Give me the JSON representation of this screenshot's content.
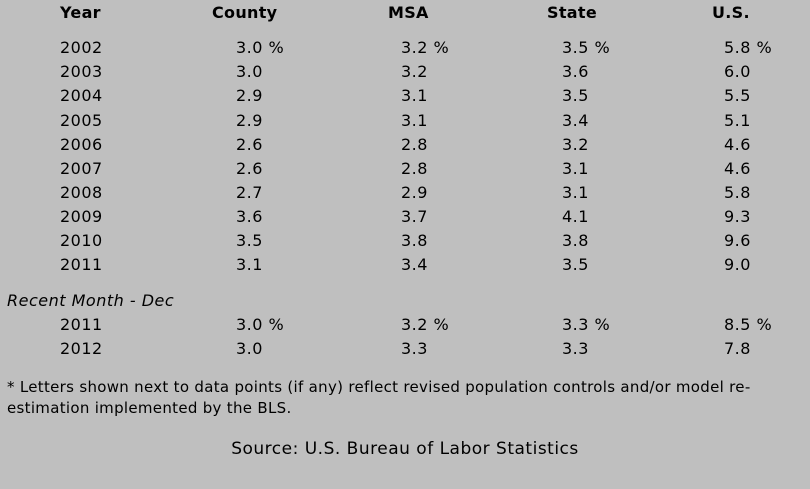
{
  "headers": {
    "year": "Year",
    "county": "County",
    "msa": "MSA",
    "state": "State",
    "us": "U.S."
  },
  "annual_rows": [
    {
      "year": "2002",
      "county": "3.0 %",
      "msa": "3.2 %",
      "state": "3.5 %",
      "us": "5.8 %"
    },
    {
      "year": "2003",
      "county": "3.0",
      "msa": "3.2",
      "state": "3.6",
      "us": "6.0"
    },
    {
      "year": "2004",
      "county": "2.9",
      "msa": "3.1",
      "state": "3.5",
      "us": "5.5"
    },
    {
      "year": "2005",
      "county": "2.9",
      "msa": "3.1",
      "state": "3.4",
      "us": "5.1"
    },
    {
      "year": "2006",
      "county": "2.6",
      "msa": "2.8",
      "state": "3.2",
      "us": "4.6"
    },
    {
      "year": "2007",
      "county": "2.6",
      "msa": "2.8",
      "state": "3.1",
      "us": "4.6"
    },
    {
      "year": "2008",
      "county": "2.7",
      "msa": "2.9",
      "state": "3.1",
      "us": "5.8"
    },
    {
      "year": "2009",
      "county": "3.6",
      "msa": "3.7",
      "state": "4.1",
      "us": "9.3"
    },
    {
      "year": "2010",
      "county": "3.5",
      "msa": "3.8",
      "state": "3.8",
      "us": "9.6"
    },
    {
      "year": "2011",
      "county": "3.1",
      "msa": "3.4",
      "state": "3.5",
      "us": "9.0"
    }
  ],
  "recent_label": "Recent Month - Dec",
  "recent_rows": [
    {
      "year": "2011",
      "county": "3.0 %",
      "msa": "3.2 %",
      "state": "3.3 %",
      "us": "8.5 %"
    },
    {
      "year": "2012",
      "county": "3.0",
      "msa": "3.3",
      "state": "3.3",
      "us": "7.8"
    }
  ],
  "footnote": "* Letters shown next to data points (if any) reflect revised population controls and/or model re-estimation implemented by the BLS.",
  "source": "Source: U.S. Bureau of Labor Statistics",
  "colors": {
    "background": "#bfbfbf",
    "text": "#000000"
  }
}
